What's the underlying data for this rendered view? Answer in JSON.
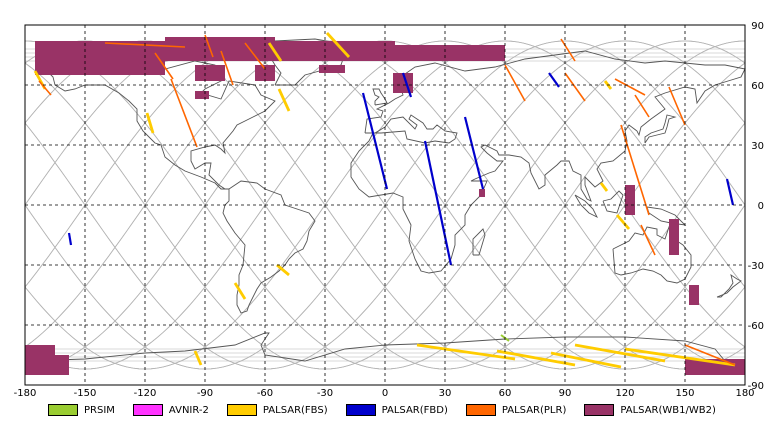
{
  "map": {
    "projection": "equirectangular",
    "lon_range": [
      -180,
      180
    ],
    "lat_range": [
      -90,
      90
    ],
    "lon_ticks": [
      -180,
      -150,
      -120,
      -90,
      -60,
      -30,
      0,
      30,
      60,
      90,
      120,
      150,
      180
    ],
    "lat_ticks": [
      -90,
      -60,
      -30,
      0,
      30,
      60,
      90
    ],
    "grid": "dashed",
    "coastline_color": "#555555",
    "orbit_track_color": "#b4b4b4"
  },
  "legend": {
    "placement": "bottom",
    "items": [
      {
        "label": "PRSIM",
        "color": "#9acd32"
      },
      {
        "label": "AVNIR-2",
        "color": "#ff33ff"
      },
      {
        "label": "PALSAR(FBS)",
        "color": "#ffcc00"
      },
      {
        "label": "PALSAR(FBD)",
        "color": "#0000cc"
      },
      {
        "label": "PALSAR(PLR)",
        "color": "#ff6600"
      },
      {
        "label": "PALSAR(WB1/WB2)",
        "color": "#993366"
      }
    ]
  },
  "observations": {
    "wb": [
      {
        "lon": [
          -175,
          -110
        ],
        "lat": [
          65,
          82
        ]
      },
      {
        "lon": [
          -110,
          -55
        ],
        "lat": [
          72,
          84
        ]
      },
      {
        "lon": [
          -55,
          5
        ],
        "lat": [
          72,
          82
        ]
      },
      {
        "lon": [
          5,
          60
        ],
        "lat": [
          72,
          80
        ]
      },
      {
        "lon": [
          -163,
          -150
        ],
        "lat": [
          68,
          78
        ]
      },
      {
        "lon": [
          -138,
          -125
        ],
        "lat": [
          72,
          80
        ]
      },
      {
        "lon": [
          -95,
          -80
        ],
        "lat": [
          62,
          70
        ]
      },
      {
        "lon": [
          -65,
          -55
        ],
        "lat": [
          62,
          70
        ]
      },
      {
        "lon": [
          -95,
          -88
        ],
        "lat": [
          53,
          57
        ]
      },
      {
        "lon": [
          -33,
          -20
        ],
        "lat": [
          66,
          70
        ]
      },
      {
        "lon": [
          4,
          14
        ],
        "lat": [
          56,
          66
        ]
      },
      {
        "lon": [
          -180,
          -158
        ],
        "lat": [
          -85,
          -75
        ]
      },
      {
        "lon": [
          -180,
          -165
        ],
        "lat": [
          -80,
          -70
        ]
      },
      {
        "lon": [
          150,
          180
        ],
        "lat": [
          -85,
          -77
        ]
      },
      {
        "lon": [
          120,
          125
        ],
        "lat": [
          -5,
          10
        ]
      },
      {
        "lon": [
          142,
          147
        ],
        "lat": [
          -25,
          -7
        ]
      },
      {
        "lon": [
          152,
          157
        ],
        "lat": [
          -50,
          -40
        ]
      },
      {
        "lon": [
          47,
          50
        ],
        "lat": [
          4,
          8
        ]
      }
    ],
    "fbd": [
      {
        "lon": [
          -11,
          1
        ],
        "lat": [
          56,
          8
        ]
      },
      {
        "lon": [
          20,
          33
        ],
        "lat": [
          32,
          -30
        ]
      },
      {
        "lon": [
          40,
          49
        ],
        "lat": [
          44,
          8
        ]
      },
      {
        "lon": [
          9,
          13
        ],
        "lat": [
          66,
          54
        ]
      },
      {
        "lon": [
          82,
          87
        ],
        "lat": [
          66,
          59
        ]
      },
      {
        "lon": [
          -158,
          -157
        ],
        "lat": [
          -14,
          -20
        ]
      },
      {
        "lon": [
          171,
          174
        ],
        "lat": [
          13,
          0
        ]
      }
    ],
    "fbs": [
      {
        "lon": [
          -175,
          -170
        ],
        "lat": [
          67,
          58
        ]
      },
      {
        "lon": [
          -58,
          -52
        ],
        "lat": [
          81,
          72
        ]
      },
      {
        "lon": [
          -53,
          -48
        ],
        "lat": [
          58,
          47
        ]
      },
      {
        "lon": [
          -29,
          -18
        ],
        "lat": [
          86,
          74
        ]
      },
      {
        "lon": [
          -119,
          -116
        ],
        "lat": [
          46,
          36
        ]
      },
      {
        "lon": [
          -95,
          -92
        ],
        "lat": [
          -73,
          -80
        ]
      },
      {
        "lon": [
          16,
          65
        ],
        "lat": [
          -70,
          -77
        ]
      },
      {
        "lon": [
          56,
          95
        ],
        "lat": [
          -73,
          -80
        ]
      },
      {
        "lon": [
          83,
          118
        ],
        "lat": [
          -74,
          -81
        ]
      },
      {
        "lon": [
          95,
          140
        ],
        "lat": [
          -70,
          -78
        ]
      },
      {
        "lon": [
          120,
          175
        ],
        "lat": [
          -72,
          -80
        ]
      },
      {
        "lon": [
          -75,
          -70
        ],
        "lat": [
          -39,
          -47
        ]
      },
      {
        "lon": [
          -54,
          -48
        ],
        "lat": [
          -30,
          -35
        ]
      },
      {
        "lon": [
          116,
          122
        ],
        "lat": [
          -5,
          -12
        ]
      },
      {
        "lon": [
          108,
          111
        ],
        "lat": [
          11,
          7
        ]
      },
      {
        "lon": [
          110,
          113
        ],
        "lat": [
          62,
          58
        ]
      }
    ],
    "plr": [
      {
        "lon": [
          -140,
          -100
        ],
        "lat": [
          81,
          79
        ]
      },
      {
        "lon": [
          -115,
          -106
        ],
        "lat": [
          76,
          63
        ]
      },
      {
        "lon": [
          -107,
          -94
        ],
        "lat": [
          63,
          29
        ]
      },
      {
        "lon": [
          -90,
          -86
        ],
        "lat": [
          85,
          74
        ]
      },
      {
        "lon": [
          -82,
          -76
        ],
        "lat": [
          77,
          60
        ]
      },
      {
        "lon": [
          -70,
          -60
        ],
        "lat": [
          81,
          68
        ]
      },
      {
        "lon": [
          60,
          70
        ],
        "lat": [
          70,
          52
        ]
      },
      {
        "lon": [
          88,
          95
        ],
        "lat": [
          83,
          72
        ]
      },
      {
        "lon": [
          90,
          100
        ],
        "lat": [
          66,
          52
        ]
      },
      {
        "lon": [
          115,
          130
        ],
        "lat": [
          63,
          55
        ]
      },
      {
        "lon": [
          125,
          132
        ],
        "lat": [
          55,
          44
        ]
      },
      {
        "lon": [
          142,
          150
        ],
        "lat": [
          59,
          40
        ]
      },
      {
        "lon": [
          118,
          132
        ],
        "lat": [
          40,
          -5
        ]
      },
      {
        "lon": [
          128,
          135
        ],
        "lat": [
          -10,
          -25
        ]
      },
      {
        "lon": [
          150,
          175
        ],
        "lat": [
          -70,
          -80
        ]
      },
      {
        "lon": [
          -173,
          -167
        ],
        "lat": [
          62,
          55
        ]
      }
    ],
    "prsim": [
      {
        "lon": [
          58,
          62
        ],
        "lat": [
          -65,
          -68
        ]
      }
    ]
  }
}
